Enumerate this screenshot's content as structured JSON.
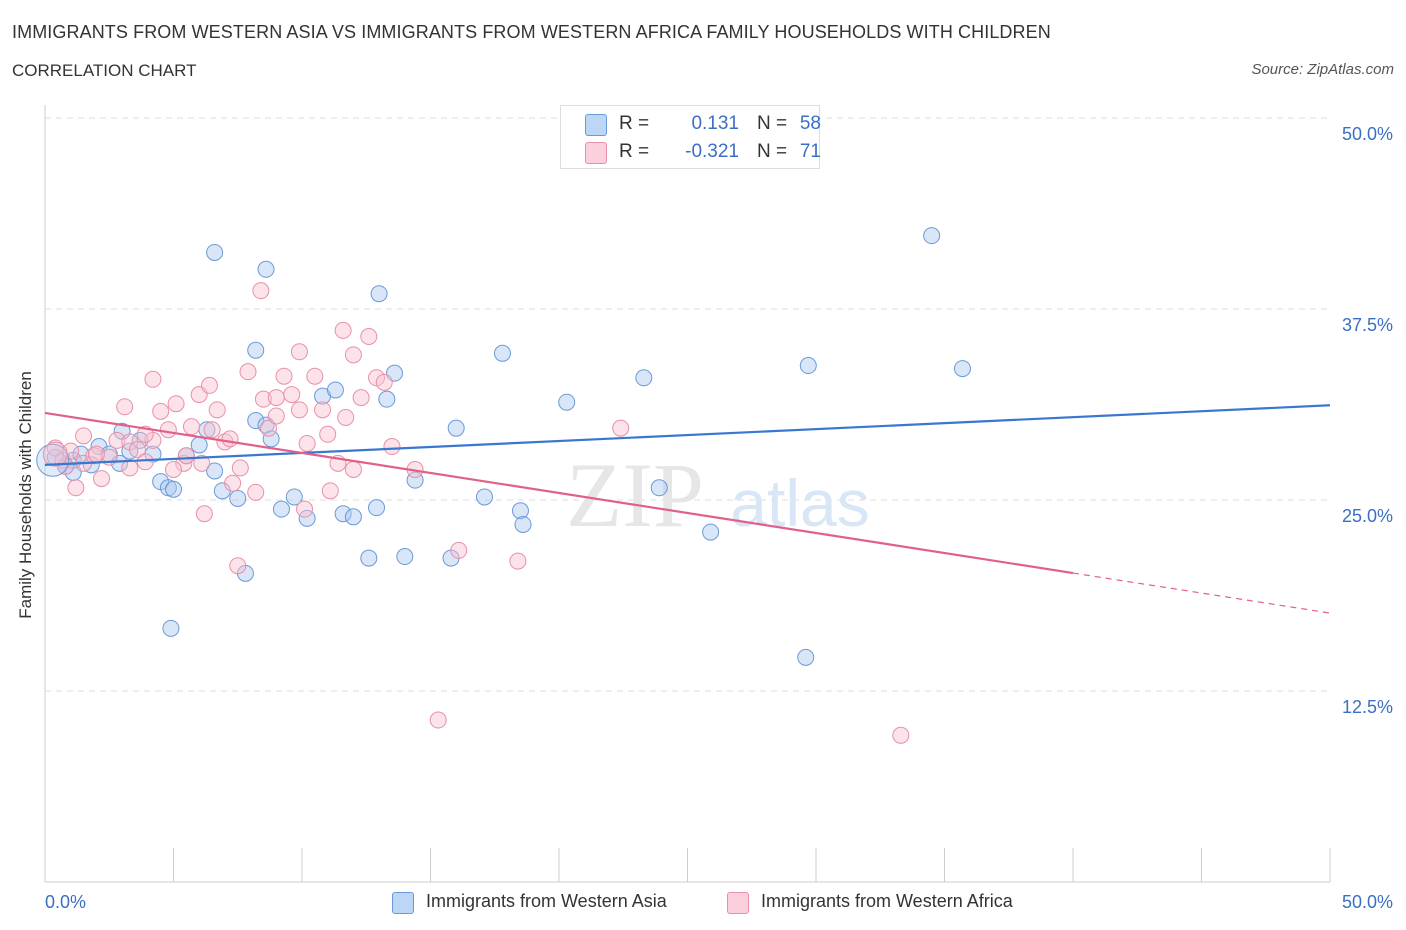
{
  "title": "IMMIGRANTS FROM WESTERN ASIA VS IMMIGRANTS FROM WESTERN AFRICA FAMILY HOUSEHOLDS WITH CHILDREN",
  "subtitle": "CORRELATION CHART",
  "source": "Source: ZipAtlas.com",
  "watermark": {
    "zip": "ZIP",
    "atlas": "atlas"
  },
  "legend": {
    "rows": [
      {
        "r_label": "R =",
        "r_value": "0.131",
        "n_label": "N =",
        "n_value": "58",
        "color": "#a8c8f0",
        "border": "#6a9ad8"
      },
      {
        "r_label": "R =",
        "r_value": "-0.321",
        "n_label": "N =",
        "n_value": "71",
        "color": "#f8c0d0",
        "border": "#e890a8"
      }
    ]
  },
  "colors": {
    "blue_line": "#3a78d0",
    "pink_line": "#e0608a",
    "blue_fill": "#a8c8f0",
    "pink_fill": "#f8c0d0",
    "axis_text": "#3a6fc4"
  },
  "chart_data": {
    "type": "scatter",
    "title": "IMMIGRANTS FROM WESTERN ASIA VS IMMIGRANTS FROM WESTERN AFRICA FAMILY HOUSEHOLDS WITH CHILDREN",
    "ylabel": "Family Households with Children",
    "xlabel": "",
    "xlim": [
      0,
      50
    ],
    "ylim": [
      0,
      50
    ],
    "x_tick_labels": [
      "0.0%",
      "50.0%"
    ],
    "y_tick_labels": [
      "12.5%",
      "25.0%",
      "37.5%",
      "50.0%"
    ],
    "y_ticks": [
      12.5,
      25.0,
      37.5,
      50.0
    ],
    "grid": true,
    "legend_position": "top-center",
    "series": [
      {
        "name": "Immigrants from Western Asia",
        "color": "#a8c8f0",
        "trend": {
          "x": [
            0,
            50
          ],
          "y": [
            27.3,
            31.2
          ],
          "dashed_from": null
        },
        "points": [
          [
            0.4,
            27.8
          ],
          [
            0.8,
            27.2
          ],
          [
            1.1,
            27.6
          ],
          [
            1.4,
            28.0
          ],
          [
            1.8,
            27.3
          ],
          [
            2.1,
            28.5
          ],
          [
            2.5,
            28.0
          ],
          [
            2.9,
            27.4
          ],
          [
            3.3,
            28.2
          ],
          [
            3.7,
            28.9
          ],
          [
            4.2,
            28.0
          ],
          [
            4.5,
            26.2
          ],
          [
            4.8,
            25.8
          ],
          [
            5.0,
            25.7
          ],
          [
            5.5,
            27.9
          ],
          [
            6.0,
            28.6
          ],
          [
            6.3,
            29.6
          ],
          [
            6.6,
            26.9
          ],
          [
            6.9,
            25.6
          ],
          [
            7.5,
            25.1
          ],
          [
            7.8,
            20.2
          ],
          [
            8.2,
            30.2
          ],
          [
            8.6,
            29.9
          ],
          [
            8.8,
            29.0
          ],
          [
            9.2,
            24.4
          ],
          [
            9.7,
            25.2
          ],
          [
            10.2,
            23.8
          ],
          [
            10.8,
            31.8
          ],
          [
            11.3,
            32.2
          ],
          [
            11.6,
            24.1
          ],
          [
            12.0,
            23.9
          ],
          [
            12.6,
            21.2
          ],
          [
            12.9,
            24.5
          ],
          [
            13.3,
            31.6
          ],
          [
            13.6,
            33.3
          ],
          [
            14.0,
            21.3
          ],
          [
            14.4,
            26.3
          ],
          [
            15.8,
            21.2
          ],
          [
            16.0,
            29.7
          ],
          [
            17.1,
            25.2
          ],
          [
            17.8,
            34.6
          ],
          [
            18.5,
            24.3
          ],
          [
            18.6,
            23.4
          ],
          [
            20.3,
            31.4
          ],
          [
            23.3,
            33.0
          ],
          [
            23.9,
            25.8
          ],
          [
            25.9,
            22.9
          ],
          [
            29.6,
            14.7
          ],
          [
            29.7,
            33.8
          ],
          [
            34.5,
            42.3
          ],
          [
            35.7,
            33.6
          ],
          [
            6.6,
            41.2
          ],
          [
            8.6,
            40.1
          ],
          [
            13.0,
            38.5
          ],
          [
            8.2,
            34.8
          ],
          [
            4.9,
            16.6
          ],
          [
            3.0,
            29.5
          ],
          [
            1.1,
            26.8
          ]
        ]
      },
      {
        "name": "Immigrants from Western Africa",
        "color": "#f8c0d0",
        "trend": {
          "x": [
            0,
            50
          ],
          "y": [
            30.7,
            17.6
          ],
          "dashed_from": 40
        },
        "points": [
          [
            0.4,
            28.4
          ],
          [
            0.7,
            27.6
          ],
          [
            1.0,
            28.2
          ],
          [
            1.2,
            25.8
          ],
          [
            1.5,
            27.4
          ],
          [
            1.9,
            27.9
          ],
          [
            2.2,
            26.4
          ],
          [
            2.5,
            27.8
          ],
          [
            2.8,
            28.9
          ],
          [
            3.1,
            31.1
          ],
          [
            3.3,
            28.8
          ],
          [
            3.6,
            28.3
          ],
          [
            3.9,
            27.5
          ],
          [
            4.2,
            28.9
          ],
          [
            4.5,
            30.8
          ],
          [
            4.8,
            29.6
          ],
          [
            5.1,
            31.3
          ],
          [
            5.4,
            27.4
          ],
          [
            5.7,
            29.8
          ],
          [
            6.0,
            31.9
          ],
          [
            6.2,
            24.1
          ],
          [
            6.4,
            32.5
          ],
          [
            6.7,
            30.9
          ],
          [
            7.0,
            28.8
          ],
          [
            7.3,
            26.1
          ],
          [
            7.6,
            27.1
          ],
          [
            7.9,
            33.4
          ],
          [
            8.2,
            25.5
          ],
          [
            8.5,
            31.6
          ],
          [
            8.7,
            29.7
          ],
          [
            9.0,
            30.5
          ],
          [
            9.3,
            33.1
          ],
          [
            9.6,
            31.9
          ],
          [
            9.9,
            30.9
          ],
          [
            10.2,
            28.7
          ],
          [
            10.5,
            33.1
          ],
          [
            10.8,
            30.9
          ],
          [
            11.1,
            25.6
          ],
          [
            11.4,
            27.4
          ],
          [
            11.7,
            30.4
          ],
          [
            12.0,
            34.5
          ],
          [
            12.3,
            31.7
          ],
          [
            12.6,
            35.7
          ],
          [
            12.9,
            33.0
          ],
          [
            13.2,
            32.7
          ],
          [
            13.5,
            28.5
          ],
          [
            8.4,
            38.7
          ],
          [
            11.6,
            36.1
          ],
          [
            9.9,
            34.7
          ],
          [
            14.4,
            27.0
          ],
          [
            15.3,
            10.6
          ],
          [
            16.1,
            21.7
          ],
          [
            18.4,
            21.0
          ],
          [
            22.4,
            29.7
          ],
          [
            33.3,
            9.6
          ],
          [
            10.1,
            24.4
          ],
          [
            7.5,
            20.7
          ],
          [
            5.0,
            27.0
          ],
          [
            4.2,
            32.9
          ],
          [
            6.1,
            27.4
          ],
          [
            2.0,
            28.0
          ],
          [
            3.3,
            27.1
          ],
          [
            12.0,
            27.0
          ],
          [
            11.0,
            29.3
          ],
          [
            9.0,
            31.7
          ],
          [
            7.2,
            29.0
          ],
          [
            6.5,
            29.6
          ],
          [
            5.5,
            27.9
          ],
          [
            0.8,
            27.2
          ],
          [
            1.5,
            29.2
          ],
          [
            3.9,
            29.3
          ]
        ]
      }
    ]
  },
  "bottom_legend": [
    "Immigrants from Western Asia",
    "Immigrants from Western Africa"
  ]
}
